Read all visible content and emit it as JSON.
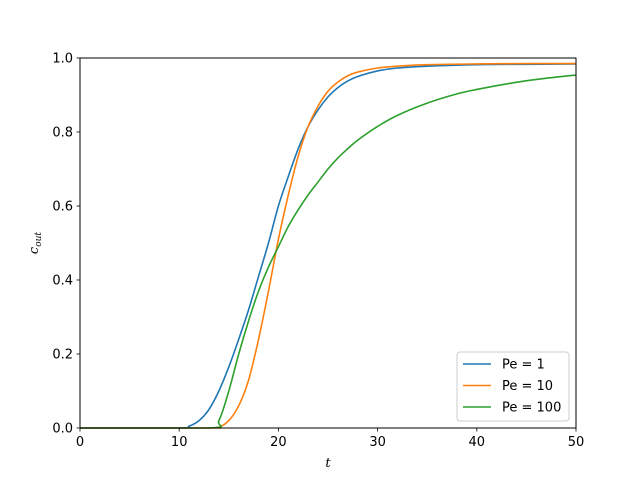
{
  "chart_data": {
    "type": "line",
    "title": "",
    "xlabel": "t",
    "ylabel_main": "c",
    "ylabel_sub": "out",
    "xlim": [
      0,
      50
    ],
    "ylim": [
      0,
      1
    ],
    "xticks": [
      0,
      10,
      20,
      30,
      40,
      50
    ],
    "yticks": [
      0.0,
      0.2,
      0.4,
      0.6,
      0.8,
      1.0
    ],
    "ytick_labels": [
      "0.0",
      "0.2",
      "0.4",
      "0.6",
      "0.8",
      "1.0"
    ],
    "grid": false,
    "legend_position": "lower-right",
    "series": [
      {
        "name": "Pe = 1",
        "color": "#1f77b4",
        "x": [
          0,
          10,
          11,
          12,
          13,
          14,
          15,
          16,
          17,
          18,
          19,
          20,
          21,
          22,
          23,
          24,
          25,
          26,
          27,
          28,
          30,
          32,
          35,
          40,
          45,
          50
        ],
        "y": [
          0.0,
          0.0,
          0.005,
          0.02,
          0.05,
          0.1,
          0.165,
          0.24,
          0.32,
          0.41,
          0.5,
          0.6,
          0.68,
          0.755,
          0.815,
          0.86,
          0.895,
          0.92,
          0.938,
          0.95,
          0.965,
          0.973,
          0.978,
          0.982,
          0.983,
          0.984
        ]
      },
      {
        "name": "Pe = 10",
        "color": "#ff7f0e",
        "x": [
          0,
          13,
          14,
          15,
          16,
          17,
          18,
          19,
          20,
          21,
          22,
          23,
          24,
          25,
          26,
          27,
          28,
          30,
          32,
          35,
          40,
          45,
          50
        ],
        "y": [
          0.0,
          0.0,
          0.002,
          0.02,
          0.06,
          0.13,
          0.24,
          0.37,
          0.51,
          0.63,
          0.735,
          0.815,
          0.87,
          0.91,
          0.935,
          0.952,
          0.962,
          0.973,
          0.978,
          0.982,
          0.984,
          0.985,
          0.985
        ]
      },
      {
        "name": "Pe = 100",
        "color": "#2ca02c",
        "x": [
          0,
          13,
          14,
          15,
          16,
          17,
          18,
          19,
          20,
          21,
          22,
          23,
          24,
          25,
          26,
          27,
          28,
          30,
          32,
          35,
          38,
          40,
          43,
          46,
          50
        ],
        "y": [
          0.0,
          0.0,
          0.02,
          0.1,
          0.2,
          0.29,
          0.37,
          0.435,
          0.49,
          0.545,
          0.59,
          0.63,
          0.665,
          0.7,
          0.73,
          0.755,
          0.778,
          0.815,
          0.845,
          0.878,
          0.903,
          0.915,
          0.93,
          0.942,
          0.954
        ]
      }
    ]
  }
}
